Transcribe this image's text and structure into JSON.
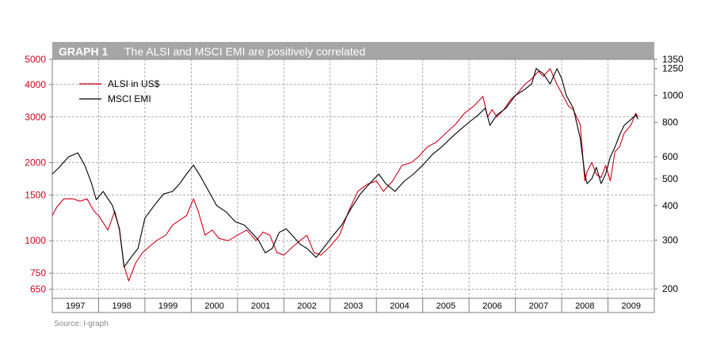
{
  "header": {
    "label": "GRAPH 1",
    "title": "The ALSI and MSCI EMI are positively correlated"
  },
  "source": "Source: I-graph",
  "colors": {
    "alsi": "#d0021b",
    "msci": "#000000",
    "header_bg": "#a6a6a6",
    "grid": "#9a9a9a",
    "left_axis_text": "#d0021b",
    "right_axis_text": "#000000"
  },
  "chart_data": {
    "type": "line",
    "scale": "log",
    "grid": true,
    "legend_position": "top-left",
    "x_ticks": [
      "1997",
      "1998",
      "1999",
      "2000",
      "2001",
      "2002",
      "2003",
      "2004",
      "2005",
      "2006",
      "2007",
      "2008",
      "2009"
    ],
    "xlim": [
      1997.0,
      2010.0
    ],
    "left_axis": {
      "ticks": [
        5000,
        4000,
        3000,
        2000,
        1500,
        1000,
        750,
        650
      ],
      "ylim": [
        600,
        5000
      ]
    },
    "right_axis": {
      "ticks": [
        1350,
        1250,
        1000,
        800,
        600,
        500,
        400,
        300,
        200
      ],
      "ylim": [
        185,
        1350
      ]
    },
    "series": [
      {
        "name": "ALSI in US$",
        "axis": "left",
        "x": [
          1997.0,
          1997.1,
          1997.25,
          1997.45,
          1997.6,
          1997.75,
          1997.9,
          1998.0,
          1998.2,
          1998.35,
          1998.45,
          1998.55,
          1998.65,
          1998.8,
          1998.95,
          1999.1,
          1999.25,
          1999.45,
          1999.6,
          1999.75,
          1999.9,
          2000.05,
          2000.15,
          2000.3,
          2000.45,
          2000.6,
          2000.8,
          2001.0,
          2001.2,
          2001.4,
          2001.55,
          2001.7,
          2001.85,
          2002.0,
          2002.2,
          2002.35,
          2002.5,
          2002.65,
          2002.8,
          2003.0,
          2003.2,
          2003.4,
          2003.6,
          2003.8,
          2004.0,
          2004.15,
          2004.35,
          2004.55,
          2004.75,
          2004.9,
          2005.1,
          2005.3,
          2005.5,
          2005.7,
          2005.9,
          2006.1,
          2006.3,
          2006.4,
          2006.5,
          2006.6,
          2006.75,
          2006.9,
          2007.05,
          2007.2,
          2007.35,
          2007.5,
          2007.6,
          2007.75,
          2007.9,
          2008.0,
          2008.15,
          2008.25,
          2008.4,
          2008.5,
          2008.55,
          2008.65,
          2008.75,
          2008.85,
          2008.95,
          2009.05,
          2009.15,
          2009.25,
          2009.35,
          2009.5,
          2009.6,
          2009.65
        ],
        "values": [
          1250,
          1350,
          1450,
          1450,
          1420,
          1450,
          1300,
          1250,
          1100,
          1300,
          1100,
          800,
          700,
          820,
          900,
          950,
          1000,
          1050,
          1150,
          1200,
          1250,
          1450,
          1300,
          1050,
          1100,
          1020,
          1000,
          1050,
          1100,
          1000,
          1080,
          1050,
          900,
          880,
          950,
          1000,
          1050,
          900,
          880,
          950,
          1050,
          1300,
          1550,
          1650,
          1700,
          1550,
          1700,
          1950,
          2000,
          2100,
          2300,
          2400,
          2600,
          2800,
          3100,
          3300,
          3600,
          3000,
          3200,
          3000,
          3200,
          3500,
          3700,
          4000,
          4200,
          4500,
          4300,
          4600,
          4000,
          3700,
          3300,
          3200,
          2800,
          1700,
          1850,
          2000,
          1800,
          1750,
          1950,
          1700,
          2200,
          2300,
          2600,
          2800,
          3100,
          3000
        ]
      },
      {
        "name": "MSCI EMI",
        "axis": "right",
        "x": [
          1997.0,
          1997.15,
          1997.35,
          1997.55,
          1997.7,
          1997.85,
          1997.95,
          1998.1,
          1998.3,
          1998.45,
          1998.55,
          1998.7,
          1998.85,
          1999.0,
          1999.2,
          1999.4,
          1999.6,
          1999.75,
          1999.9,
          2000.05,
          2000.2,
          2000.35,
          2000.55,
          2000.75,
          2000.95,
          2001.15,
          2001.3,
          2001.45,
          2001.6,
          2001.75,
          2001.9,
          2002.05,
          2002.2,
          2002.35,
          2002.5,
          2002.7,
          2002.85,
          2003.05,
          2003.25,
          2003.45,
          2003.65,
          2003.85,
          2004.05,
          2004.2,
          2004.4,
          2004.6,
          2004.8,
          2005.0,
          2005.2,
          2005.4,
          2005.6,
          2005.8,
          2006.0,
          2006.2,
          2006.35,
          2006.45,
          2006.6,
          2006.8,
          2007.0,
          2007.2,
          2007.35,
          2007.45,
          2007.6,
          2007.75,
          2007.9,
          2008.0,
          2008.1,
          2008.25,
          2008.4,
          2008.5,
          2008.55,
          2008.65,
          2008.75,
          2008.85,
          2008.95,
          2009.05,
          2009.15,
          2009.25,
          2009.35,
          2009.5,
          2009.6,
          2009.65
        ],
        "values": [
          520,
          550,
          600,
          620,
          560,
          480,
          420,
          450,
          400,
          330,
          240,
          260,
          280,
          360,
          400,
          440,
          450,
          480,
          520,
          560,
          510,
          460,
          400,
          380,
          350,
          340,
          320,
          300,
          270,
          280,
          320,
          330,
          310,
          290,
          280,
          260,
          280,
          310,
          340,
          390,
          440,
          480,
          520,
          480,
          450,
          490,
          520,
          560,
          610,
          650,
          700,
          750,
          800,
          850,
          900,
          780,
          850,
          900,
          1000,
          1050,
          1100,
          1250,
          1200,
          1100,
          1250,
          1150,
          1000,
          900,
          700,
          520,
          480,
          500,
          550,
          480,
          520,
          600,
          650,
          720,
          780,
          820,
          850,
          820
        ]
      }
    ]
  }
}
